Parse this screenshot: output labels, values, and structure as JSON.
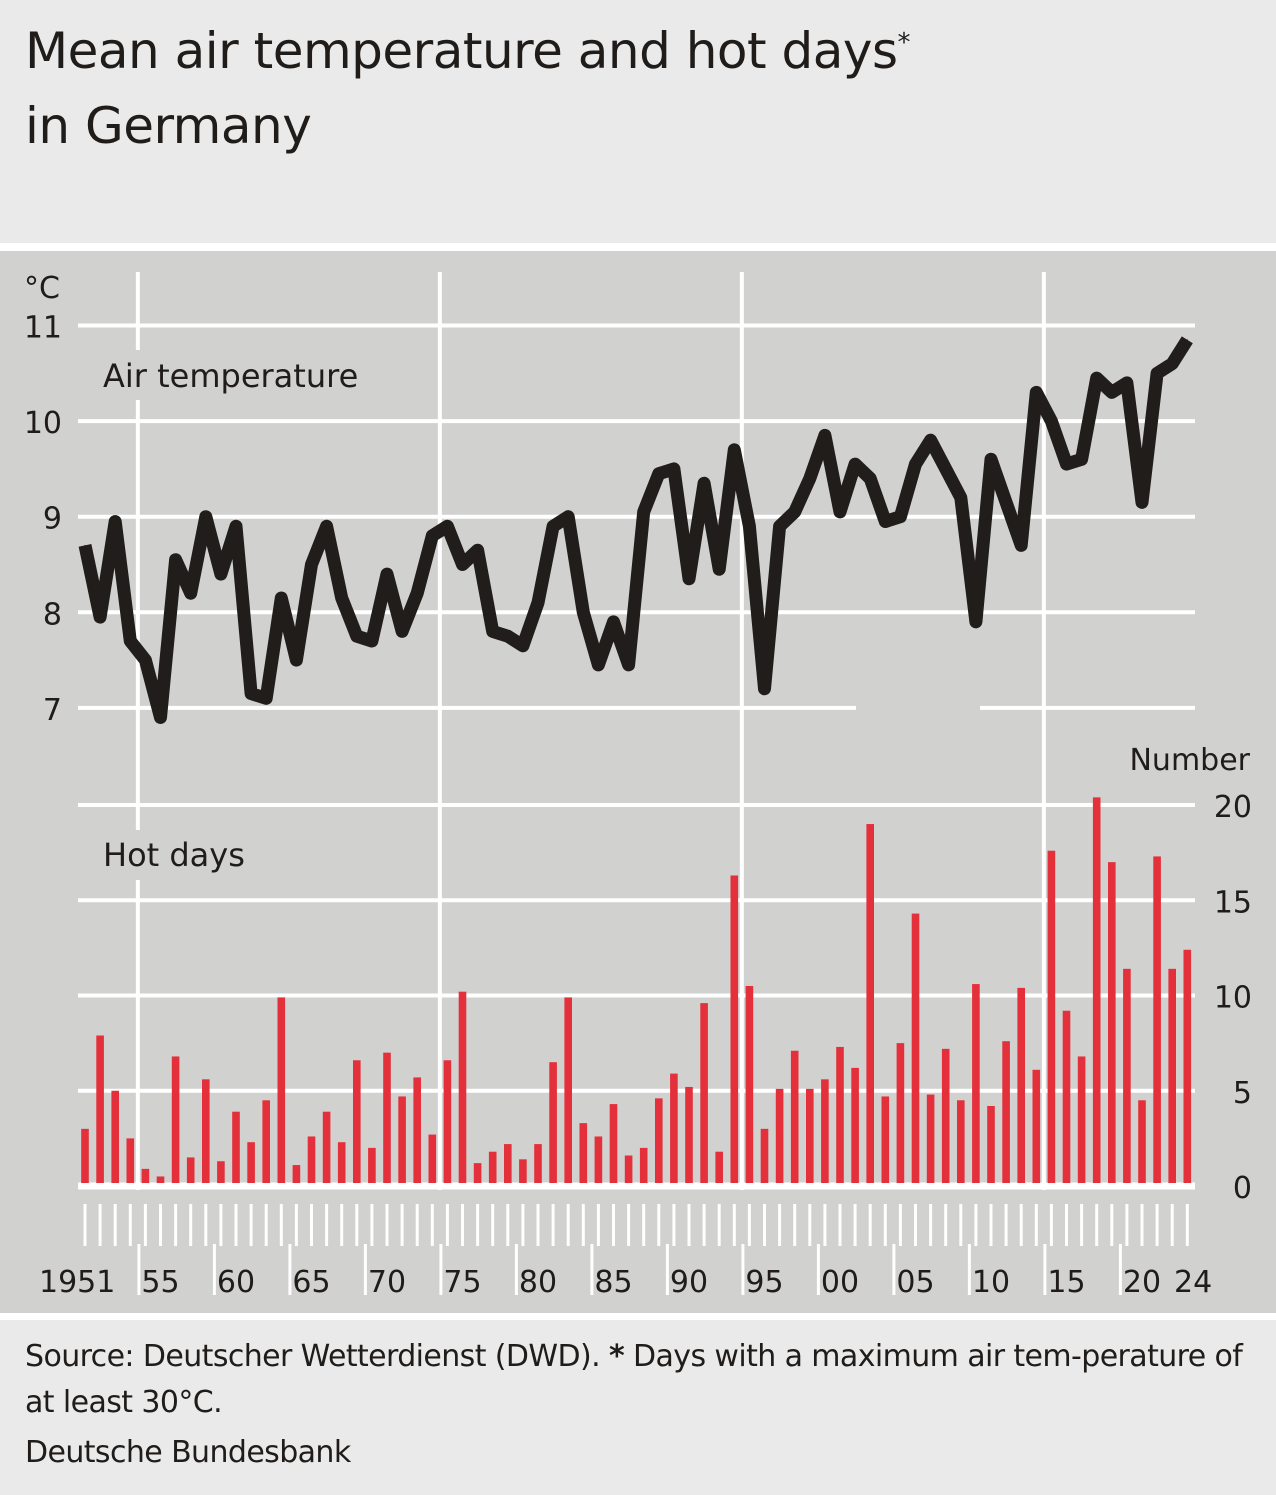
{
  "header": {
    "title_line1": "Mean air temperature and hot days",
    "title_asterisk": "*",
    "title_line2": "in Germany"
  },
  "footer": {
    "source_text": "Source: Deutscher Wetterdienst (DWD).",
    "asterisk": "*",
    "note_text": "Days with a maximum air tem-perature of at least 30°C.",
    "publisher": "Deutsche Bundesbank"
  },
  "colors": {
    "line": "#201d1a",
    "bars": "#e3303a",
    "plot_background": "#d1d1d0",
    "grid": "#ffffff"
  },
  "chart_data": [
    {
      "type": "line",
      "title": "Air temperature",
      "ylabel": "°C",
      "ylim": [
        7,
        11
      ],
      "yticks": [
        "7",
        "8",
        "9",
        "10",
        "11"
      ],
      "x": [
        1951,
        1952,
        1953,
        1954,
        1955,
        1956,
        1957,
        1958,
        1959,
        1960,
        1961,
        1962,
        1963,
        1964,
        1965,
        1966,
        1967,
        1968,
        1969,
        1970,
        1971,
        1972,
        1973,
        1974,
        1975,
        1976,
        1977,
        1978,
        1979,
        1980,
        1981,
        1982,
        1983,
        1984,
        1985,
        1986,
        1987,
        1988,
        1989,
        1990,
        1991,
        1992,
        1993,
        1994,
        1995,
        1996,
        1997,
        1998,
        1999,
        2000,
        2001,
        2002,
        2003,
        2004,
        2005,
        2006,
        2007,
        2008,
        2009,
        2010,
        2011,
        2012,
        2013,
        2014,
        2015,
        2016,
        2017,
        2018,
        2019,
        2020,
        2021,
        2022,
        2023,
        2024
      ],
      "values": [
        8.7,
        7.95,
        8.95,
        7.7,
        7.5,
        6.9,
        8.55,
        8.2,
        9.0,
        8.4,
        8.9,
        7.15,
        7.1,
        8.15,
        7.5,
        8.5,
        8.9,
        8.15,
        7.75,
        7.7,
        8.4,
        7.8,
        8.2,
        8.8,
        8.9,
        8.5,
        8.65,
        7.8,
        7.75,
        7.65,
        8.1,
        8.9,
        9.0,
        8.0,
        7.45,
        7.9,
        7.45,
        9.05,
        9.45,
        9.5,
        8.35,
        9.35,
        8.45,
        9.7,
        8.9,
        7.2,
        8.9,
        9.05,
        9.4,
        9.85,
        9.05,
        9.55,
        9.4,
        8.95,
        9.0,
        9.55,
        9.8,
        9.5,
        9.2,
        7.9,
        9.6,
        9.15,
        8.7,
        10.3,
        10.0,
        9.55,
        9.6,
        10.45,
        10.3,
        10.4,
        9.15,
        10.5,
        10.6,
        10.85
      ]
    },
    {
      "type": "bar",
      "title": "Hot days",
      "ylabel": "Number",
      "ylim": [
        0,
        20
      ],
      "yticks": [
        "0",
        "5",
        "10",
        "15",
        "20"
      ],
      "x": [
        1951,
        1952,
        1953,
        1954,
        1955,
        1956,
        1957,
        1958,
        1959,
        1960,
        1961,
        1962,
        1963,
        1964,
        1965,
        1966,
        1967,
        1968,
        1969,
        1970,
        1971,
        1972,
        1973,
        1974,
        1975,
        1976,
        1977,
        1978,
        1979,
        1980,
        1981,
        1982,
        1983,
        1984,
        1985,
        1986,
        1987,
        1988,
        1989,
        1990,
        1991,
        1992,
        1993,
        1994,
        1995,
        1996,
        1997,
        1998,
        1999,
        2000,
        2001,
        2002,
        2003,
        2004,
        2005,
        2006,
        2007,
        2008,
        2009,
        2010,
        2011,
        2012,
        2013,
        2014,
        2015,
        2016,
        2017,
        2018,
        2019,
        2020,
        2021,
        2022,
        2023,
        2024
      ],
      "values": [
        3.0,
        7.9,
        5.0,
        2.5,
        0.9,
        0.5,
        6.8,
        1.5,
        5.6,
        1.3,
        3.9,
        2.3,
        4.5,
        9.9,
        1.1,
        2.6,
        3.9,
        2.3,
        6.6,
        2.0,
        7.0,
        4.7,
        5.7,
        2.7,
        6.6,
        10.2,
        1.2,
        1.8,
        2.2,
        1.4,
        2.2,
        6.5,
        9.9,
        3.3,
        2.6,
        4.3,
        1.6,
        2.0,
        4.6,
        5.9,
        5.2,
        9.6,
        1.8,
        16.3,
        10.5,
        3.0,
        5.1,
        7.1,
        5.1,
        5.6,
        7.3,
        6.2,
        19.0,
        4.7,
        7.5,
        14.3,
        4.8,
        7.2,
        4.5,
        10.6,
        4.2,
        7.6,
        10.4,
        6.1,
        17.6,
        9.2,
        6.8,
        20.4,
        17.0,
        11.4,
        4.5,
        17.3,
        11.4,
        12.4
      ]
    }
  ],
  "x_axis": {
    "tick_labels": [
      "1951",
      "55",
      "60",
      "65",
      "70",
      "75",
      "80",
      "85",
      "90",
      "95",
      "00",
      "05",
      "10",
      "15",
      "20",
      "24"
    ],
    "tick_years": [
      1951,
      1955,
      1960,
      1965,
      1970,
      1975,
      1980,
      1985,
      1990,
      1995,
      2000,
      2005,
      2010,
      2015,
      2020,
      2024
    ]
  }
}
